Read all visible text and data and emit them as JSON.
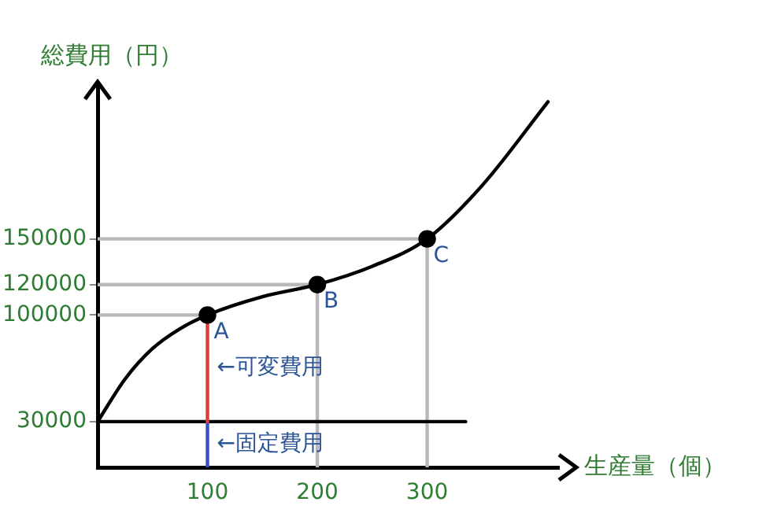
{
  "chart_data": {
    "type": "line",
    "xlabel": "生産量（個）",
    "ylabel": "総費用（円）",
    "xlim": [
      0,
      420
    ],
    "ylim": [
      0,
      250000
    ],
    "xticks": [
      100,
      200,
      300
    ],
    "yticks": [
      30000,
      100000,
      120000,
      150000
    ],
    "grid": false,
    "legend": false,
    "marker": "none",
    "line_style": "solid",
    "series": [
      {
        "type": "scatter",
        "marker": "circle",
        "color": "#000000",
        "x": [
          100,
          200,
          300
        ],
        "values": [
          100000,
          120000,
          150000
        ]
      },
      {
        "color": "#000000",
        "x": [
          0,
          25,
          50,
          75,
          100,
          150,
          200,
          250,
          300,
          350,
          410
        ],
        "values": [
          30000,
          58000,
          78000,
          91000,
          100000,
          112000,
          120000,
          132000,
          150000,
          185000,
          240000
        ]
      },
      {
        "color": "#e03a3a",
        "x": [
          100,
          100
        ],
        "values": [
          30000,
          100000
        ]
      },
      {
        "color": "#3a4fc0",
        "x": [
          100,
          100
        ],
        "values": [
          0,
          30000
        ]
      },
      {
        "color": "#000000",
        "x": [
          0,
          335
        ],
        "values": [
          30000,
          30000
        ]
      },
      {
        "color": "#b8b8b8",
        "x": [
          0,
          100
        ],
        "values": [
          100000,
          100000
        ]
      },
      {
        "color": "#b8b8b8",
        "x": [
          0,
          200
        ],
        "values": [
          120000,
          120000
        ]
      },
      {
        "color": "#b8b8b8",
        "x": [
          0,
          300
        ],
        "values": [
          150000,
          150000
        ]
      },
      {
        "color": "#b8b8b8",
        "x": [
          200,
          200
        ],
        "values": [
          0,
          120000
        ]
      },
      {
        "color": "#b8b8b8",
        "x": [
          300,
          300
        ],
        "values": [
          0,
          150000
        ]
      }
    ],
    "annotations": [
      {
        "text": "A",
        "x": 100,
        "y": 100000
      },
      {
        "text": "B",
        "x": 200,
        "y": 120000
      },
      {
        "text": "C",
        "x": 300,
        "y": 150000
      },
      {
        "text": "←可変費用",
        "x": 100,
        "y": 65000
      },
      {
        "text": "←固定費用",
        "x": 100,
        "y": 15000
      }
    ]
  }
}
